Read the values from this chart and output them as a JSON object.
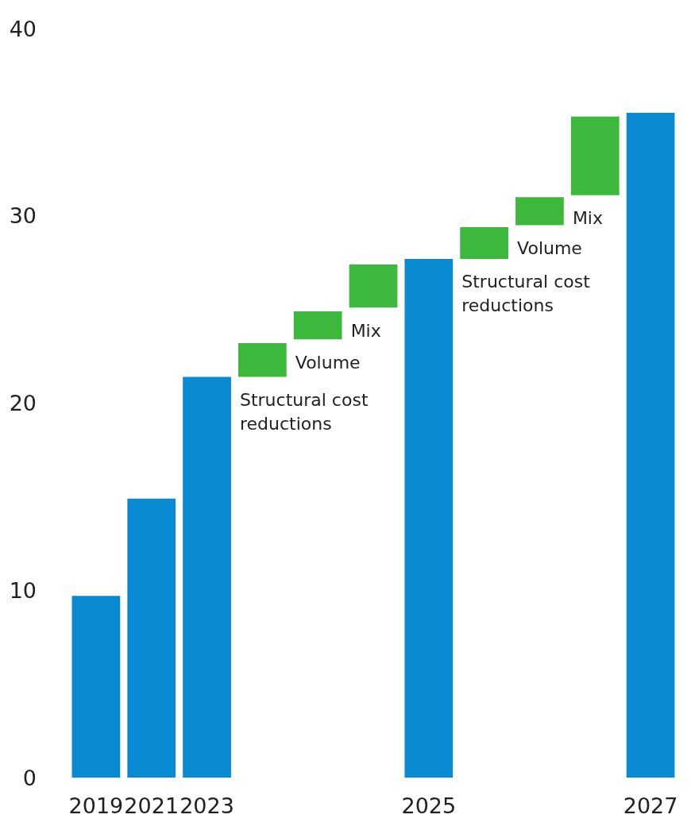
{
  "chart_data": {
    "type": "bar",
    "categories": [
      "2019",
      "2021",
      "2023",
      null,
      null,
      null,
      "2025",
      null,
      null,
      null,
      "2027"
    ],
    "values": [
      9.7,
      14.9,
      21.4,
      1.8,
      1.5,
      2.3,
      27.7,
      1.7,
      1.5,
      4.2,
      35.5
    ],
    "base": [
      0,
      0,
      0,
      21.4,
      23.4,
      25.1,
      0,
      27.7,
      29.5,
      31.1,
      0
    ],
    "colors": [
      "#0a8ad2",
      "#0a8ad2",
      "#0a8ad2",
      "#3cb93c",
      "#3cb93c",
      "#3cb93c",
      "#0a8ad2",
      "#3cb93c",
      "#3cb93c",
      "#3cb93c",
      "#0a8ad2"
    ],
    "annotations": [
      "Structural cost reductions",
      "Volume",
      "Mix",
      "Structural cost reductions",
      "Volume",
      "Mix"
    ],
    "ylim": [
      0,
      40
    ],
    "yticks": [
      0,
      10,
      20,
      30,
      40
    ],
    "grid": false
  }
}
